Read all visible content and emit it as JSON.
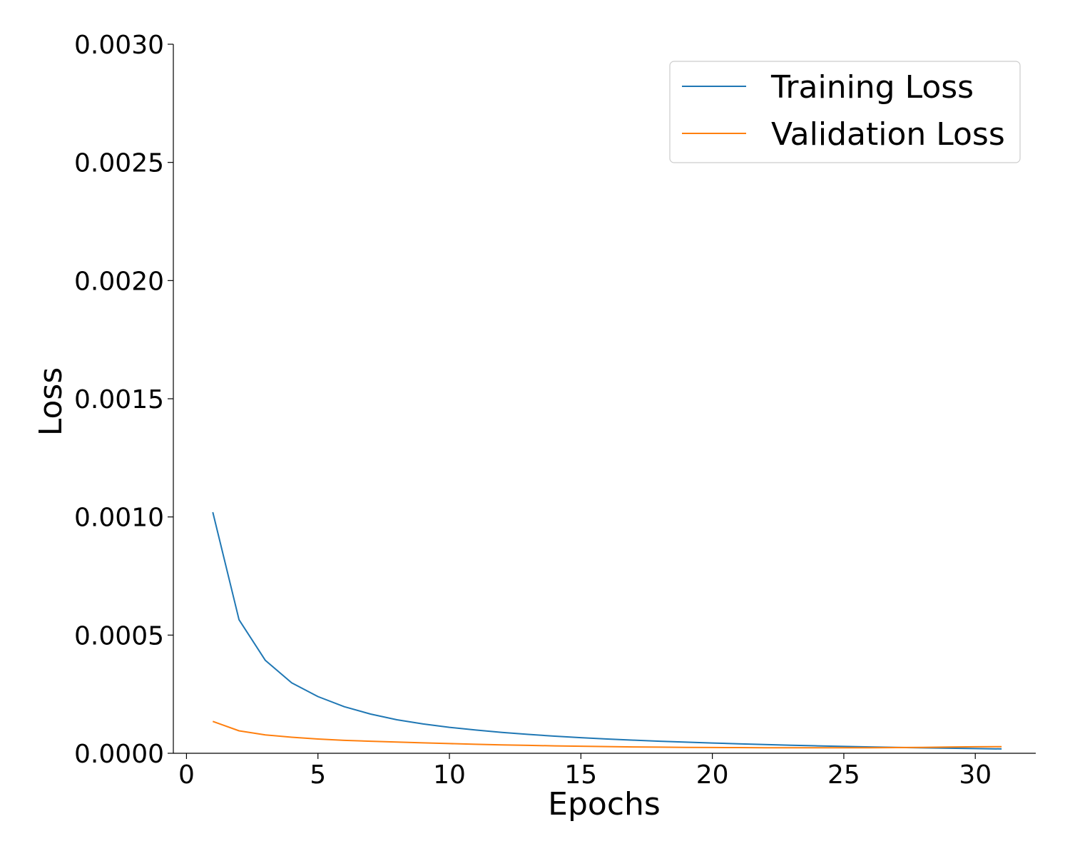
{
  "chart_data": {
    "type": "line",
    "title": "",
    "xlabel": "Epochs",
    "ylabel": "Loss",
    "xlim": [
      -0.5,
      32.3
    ],
    "ylim": [
      0,
      0.003
    ],
    "x_ticks": [
      0,
      5,
      10,
      15,
      20,
      25,
      30
    ],
    "x_tick_labels": [
      "0",
      "5",
      "10",
      "15",
      "20",
      "25",
      "30"
    ],
    "y_ticks": [
      0,
      0.0005,
      0.001,
      0.0015,
      0.002,
      0.0025,
      0.003
    ],
    "y_tick_labels": [
      "0.0000",
      "0.0005",
      "0.0010",
      "0.0015",
      "0.0020",
      "0.0025",
      "0.0030"
    ],
    "grid": false,
    "legend_position": "top-right",
    "x": [
      1,
      2,
      3,
      4,
      5,
      6,
      7,
      8,
      9,
      10,
      11,
      12,
      13,
      14,
      15,
      16,
      17,
      18,
      19,
      20,
      21,
      22,
      23,
      24,
      25,
      26,
      27,
      28,
      29,
      30,
      31
    ],
    "series": [
      {
        "name": "Training Loss",
        "color": "#1f77b4",
        "values": [
          0.00102,
          0.000565,
          0.000393,
          0.000298,
          0.00024,
          0.000197,
          0.000166,
          0.000142,
          0.000124,
          0.00011,
          9.85e-05,
          8.85e-05,
          8e-05,
          7.25e-05,
          6.6e-05,
          6.05e-05,
          5.55e-05,
          5.1e-05,
          4.7e-05,
          4.35e-05,
          4e-05,
          3.7e-05,
          3.4e-05,
          3.15e-05,
          2.9e-05,
          2.68e-05,
          2.48e-05,
          2.3e-05,
          2.15e-05,
          2e-05,
          1.85e-05
        ]
      },
      {
        "name": "Validation Loss",
        "color": "#ff7f0e",
        "values": [
          0.000135,
          9.5e-05,
          7.8e-05,
          6.8e-05,
          6.05e-05,
          5.45e-05,
          5.1e-05,
          4.75e-05,
          4.4e-05,
          4.1e-05,
          3.8e-05,
          3.55e-05,
          3.35e-05,
          3.15e-05,
          3e-05,
          2.85e-05,
          2.7e-05,
          2.6e-05,
          2.5e-05,
          2.45e-05,
          2.4e-05,
          2.36e-05,
          2.33e-05,
          2.32e-05,
          2.32e-05,
          2.35e-05,
          2.4e-05,
          2.5e-05,
          2.65e-05,
          2.75e-05,
          2.8e-05
        ]
      }
    ]
  }
}
